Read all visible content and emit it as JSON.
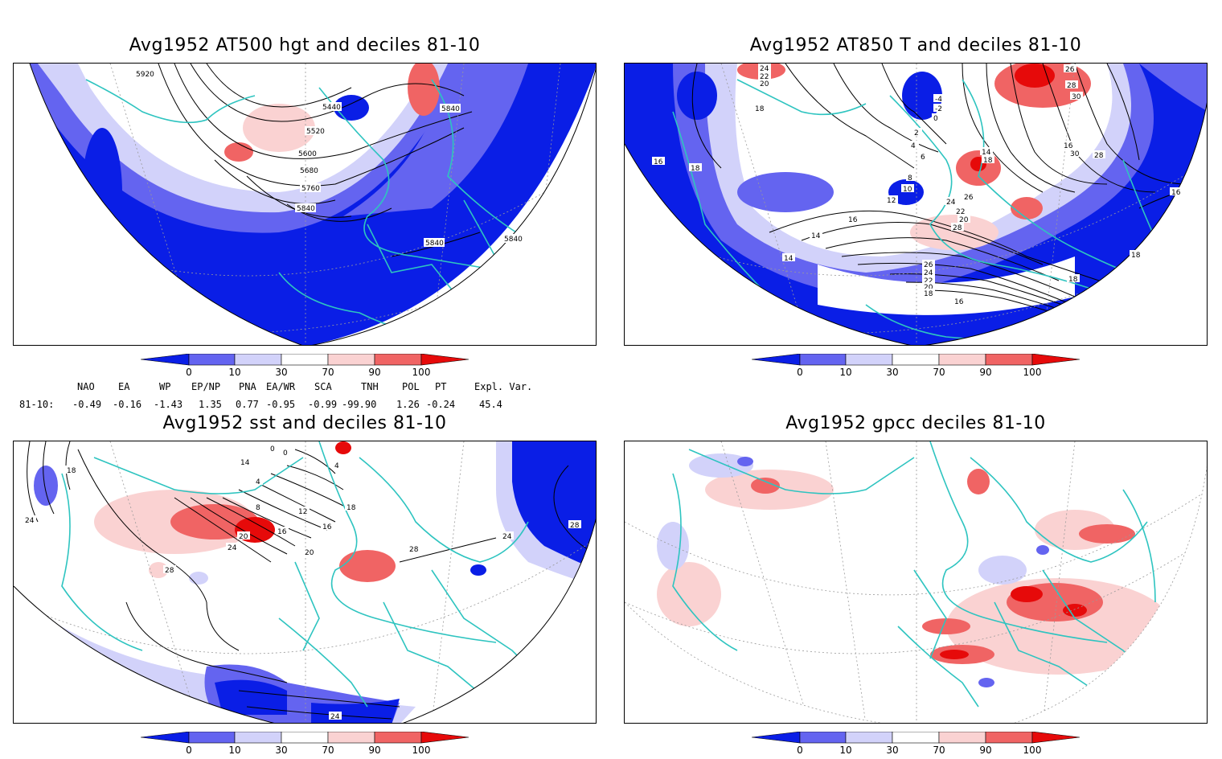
{
  "panels": [
    {
      "title": "Avg1952 AT500 hgt and deciles 81-10",
      "contour_labels": [
        "5920",
        "5440",
        "5520",
        "5600",
        "5680",
        "5760",
        "5840",
        "5840",
        "5840",
        "5840"
      ]
    },
    {
      "title": "Avg1952 AT850 T and deciles 81-10",
      "contour_labels": [
        "24",
        "22",
        "20",
        "18",
        "16",
        "18",
        "-4",
        "-2",
        "0",
        "2",
        "4",
        "6",
        "8",
        "10",
        "12",
        "14",
        "16",
        "14",
        "26",
        "28",
        "30",
        "14",
        "18",
        "26",
        "24",
        "22",
        "20",
        "28",
        "26",
        "24",
        "22",
        "20",
        "18",
        "16",
        "30",
        "28",
        "16",
        "18",
        "18",
        "16"
      ]
    },
    {
      "title": "Avg1952 sst and deciles 81-10",
      "contour_labels": [
        "0",
        "18",
        "24",
        "14",
        "0",
        "4",
        "8",
        "12",
        "16",
        "20",
        "24",
        "20",
        "28",
        "28",
        "24",
        "28",
        "24",
        "16",
        "18",
        "4"
      ]
    },
    {
      "title": "Avg1952 gpcc deciles 81-10",
      "contour_labels": []
    }
  ],
  "colorbar": {
    "tick_labels": [
      "0",
      "10",
      "30",
      "70",
      "90",
      "100"
    ],
    "colors": [
      "#0a1ee6",
      "#6464f0",
      "#d2d2fa",
      "#ffffff",
      "#fad2d2",
      "#f06464",
      "#e60a0a"
    ]
  },
  "indices": {
    "header": [
      "NAO",
      "EA",
      "WP",
      "EP/NP",
      "PNA",
      "EA/WR",
      "SCA",
      "TNH",
      "POL",
      "PT",
      "Expl. Var."
    ],
    "row_label": "81-10:",
    "values": [
      "-0.49",
      "-0.16",
      "-1.43",
      "1.35",
      "0.77",
      "-0.95",
      "-0.99",
      "-99.90",
      "1.26",
      "-0.24",
      "45.4"
    ]
  },
  "colors": {
    "coast": "#2ec4c0",
    "frame": "#000000",
    "grid": "#9a9a9a"
  }
}
